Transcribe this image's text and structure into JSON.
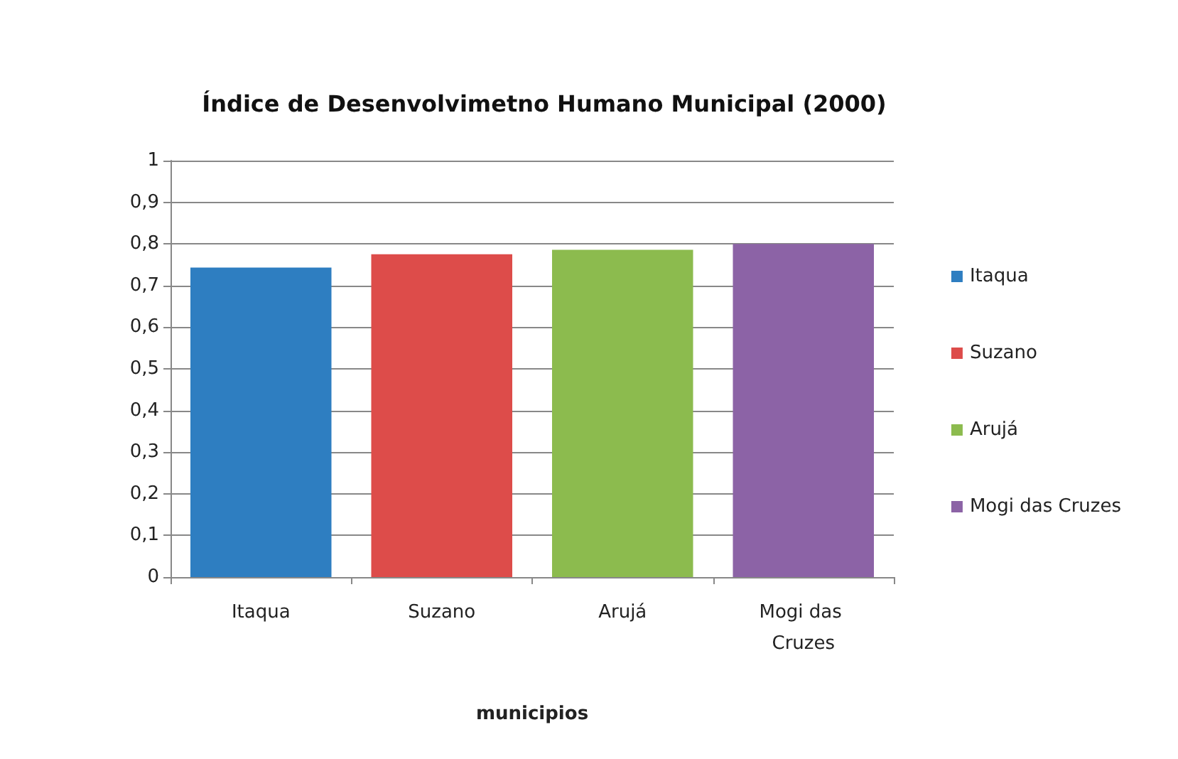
{
  "chart_data": {
    "type": "bar",
    "title": "Índice de Desenvolvimetno Humano Municipal (2000)",
    "xlabel": "municipios",
    "categories": [
      "Itaqua",
      "Suzano",
      "Arujá",
      "Mogi das Cruzes"
    ],
    "series": [
      {
        "name": "Itaqua",
        "color": "#2e7ec1",
        "values": [
          0.743,
          null,
          null,
          null
        ]
      },
      {
        "name": "Suzano",
        "color": "#dd4c4a",
        "values": [
          null,
          0.775,
          null,
          null
        ]
      },
      {
        "name": "Arujá",
        "color": "#8cbb4e",
        "values": [
          null,
          null,
          0.786,
          null
        ]
      },
      {
        "name": "Mogi das Cruzes",
        "color": "#8c63a6",
        "values": [
          null,
          null,
          null,
          0.8
        ]
      }
    ],
    "ylim": [
      0,
      1
    ],
    "yticks": [
      0,
      {
        "value": 0.1,
        "label": "0,1"
      },
      {
        "value": 0.2,
        "label": "0,2"
      },
      {
        "value": 0.3,
        "label": "0,3"
      },
      {
        "value": 0.4,
        "label": "0,4"
      },
      {
        "value": 0.5,
        "label": "0,5"
      },
      {
        "value": 0.6,
        "label": "0,6"
      },
      {
        "value": 0.7,
        "label": "0,7"
      },
      {
        "value": 0.8,
        "label": "0,8"
      },
      {
        "value": 0.9,
        "label": "0,9"
      },
      1
    ],
    "grid": "y",
    "legend": "right"
  }
}
